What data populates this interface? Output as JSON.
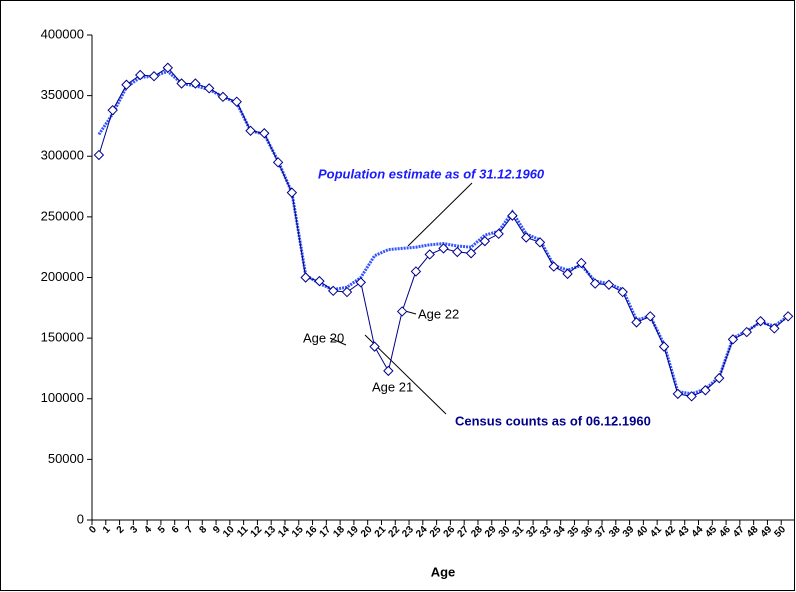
{
  "chart_data": {
    "type": "line",
    "x_label": "Age",
    "categories": [
      "0",
      "1",
      "2",
      "3",
      "4",
      "5",
      "6",
      "7",
      "8",
      "9",
      "10",
      "11",
      "12",
      "13",
      "14",
      "15",
      "16",
      "17",
      "18",
      "19",
      "20",
      "21",
      "22",
      "23",
      "24",
      "25",
      "26",
      "27",
      "28",
      "29",
      "30",
      "31",
      "32",
      "33",
      "34",
      "35",
      "36",
      "37",
      "38",
      "39",
      "40",
      "41",
      "42",
      "43",
      "44",
      "45",
      "46",
      "47",
      "48",
      "49",
      "50"
    ],
    "series": [
      {
        "name": "Census counts as of 06.12.1960",
        "color": "#00008b",
        "marker": "diamond",
        "values": [
          301000,
          338000,
          359000,
          367000,
          366000,
          373000,
          360000,
          360000,
          356000,
          349000,
          345000,
          321000,
          319000,
          295000,
          270000,
          200000,
          197000,
          189000,
          188000,
          196000,
          143000,
          123000,
          172000,
          205000,
          219000,
          224000,
          221000,
          220000,
          230000,
          236000,
          251000,
          233000,
          229000,
          209000,
          203000,
          212000,
          195000,
          194000,
          188000,
          163000,
          168000,
          143000,
          104000,
          102000,
          107000,
          117000,
          149000,
          155000,
          164000,
          158000,
          168000
        ]
      },
      {
        "name": "Population estimate as of 31.12.1960",
        "color": "#3355ff",
        "values": [
          318000,
          335000,
          357000,
          365000,
          366000,
          370000,
          360000,
          358000,
          355000,
          349000,
          344000,
          321000,
          318000,
          296000,
          270000,
          202000,
          195000,
          190000,
          192000,
          200000,
          218000,
          223000,
          224000,
          225000,
          227000,
          228000,
          226000,
          225000,
          235000,
          238000,
          254000,
          236000,
          231000,
          210000,
          206000,
          210000,
          197000,
          195000,
          190000,
          165000,
          168000,
          145000,
          106000,
          104000,
          108000,
          118000,
          150000,
          156000,
          163000,
          160000,
          168000
        ]
      }
    ],
    "annotations": [
      "Age 20",
      "Age 21",
      "Age 22"
    ],
    "ylim": [
      0,
      400000
    ],
    "yticks": [
      0,
      50000,
      100000,
      150000,
      200000,
      250000,
      300000,
      350000,
      400000
    ]
  }
}
